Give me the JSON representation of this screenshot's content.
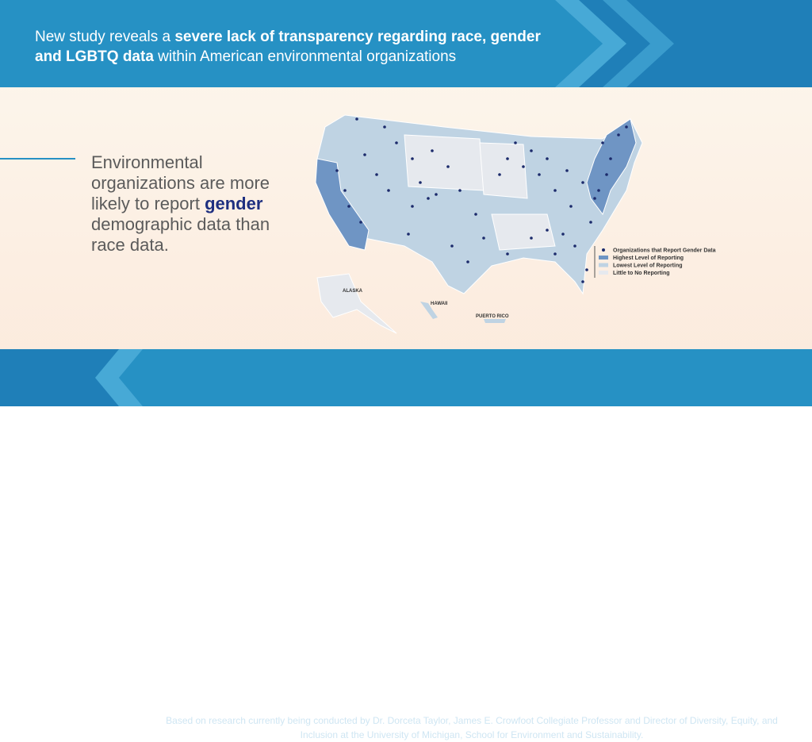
{
  "header": {
    "segments": [
      {
        "text": "New study reveals a ",
        "bold": false
      },
      {
        "text": "severe lack of transparency regarding race, gender and LGBTQ data",
        "bold": true
      },
      {
        "text": " within American environmental organizations",
        "bold": false
      }
    ]
  },
  "body": {
    "segments": [
      {
        "text": "Environmental organizations are more likely to report ",
        "bold": false
      },
      {
        "text": "gender",
        "bold": true
      },
      {
        "text": " demographic data than race data.",
        "bold": false
      }
    ]
  },
  "map": {
    "labels": [
      "ALASKA",
      "HAWAII",
      "PUERTO RICO"
    ],
    "legend": [
      {
        "label": "Organizations that Report Gender Data",
        "kind": "dot",
        "color": "#1b2a6b"
      },
      {
        "label": "Highest Level of Reporting",
        "kind": "swatch",
        "color": "#6f95c4"
      },
      {
        "label": "Lowest Level of Reporting",
        "kind": "swatch",
        "color": "#bfd3e3"
      },
      {
        "label": "Little to No Reporting",
        "kind": "swatch",
        "color": "#e6e9ee"
      }
    ]
  },
  "footer": {
    "text": "Based on research currently being conducted by Dr. Dorceta Taylor, James E. Crowfoot Collegiate Professor and Director of Diversity, Equity, and Inclusion at the University of Michigan, School for Environment and Sustainability."
  }
}
